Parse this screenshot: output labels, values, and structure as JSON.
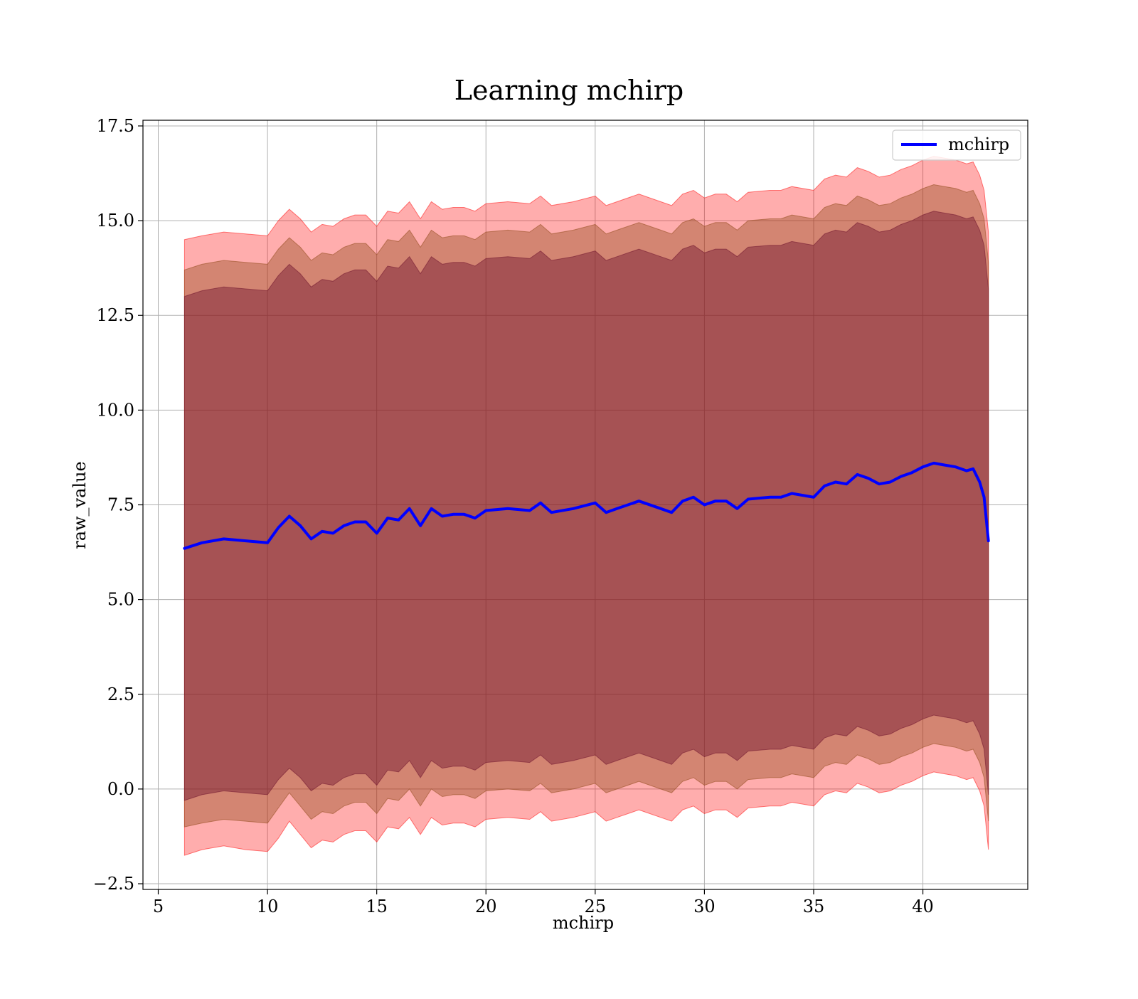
{
  "chart_data": {
    "type": "line",
    "title": "Learning mchirp",
    "xlabel": "mchirp",
    "ylabel": "raw_value",
    "xlim": [
      4.3,
      44.8
    ],
    "ylim": [
      -2.65,
      17.65
    ],
    "xticks": [
      5,
      10,
      15,
      20,
      25,
      30,
      35,
      40
    ],
    "yticks": [
      -2.5,
      0.0,
      2.5,
      5.0,
      7.5,
      10.0,
      12.5,
      15.0,
      17.5
    ],
    "xtick_labels": [
      "5",
      "10",
      "15",
      "20",
      "25",
      "30",
      "35",
      "40"
    ],
    "ytick_labels": [
      "−2.5",
      "0.0",
      "2.5",
      "5.0",
      "7.5",
      "10.0",
      "12.5",
      "15.0",
      "17.5"
    ],
    "grid": true,
    "legend": {
      "location": "upper right",
      "entries": [
        "mchirp"
      ]
    },
    "colors": {
      "line": "#0000ff",
      "band_light": "#ff0000",
      "band_mid": "#8b4513",
      "band_dark": "#6a0d2a",
      "grid": "#b0b0b0"
    },
    "series": [
      {
        "name": "mchirp",
        "x": [
          6.2,
          7,
          8,
          9,
          10,
          10.5,
          11,
          11.5,
          12,
          12.5,
          13,
          13.5,
          14,
          14.5,
          15,
          15.5,
          16,
          16.5,
          17,
          17.5,
          18,
          18.5,
          19,
          19.5,
          20,
          21,
          22,
          22.5,
          23,
          24,
          25,
          25.5,
          26,
          27,
          28,
          28.5,
          29,
          29.5,
          30,
          30.5,
          31,
          31.5,
          32,
          33,
          33.5,
          34,
          35,
          35.5,
          36,
          36.5,
          37,
          37.5,
          38,
          38.5,
          39,
          39.5,
          40,
          40.5,
          41,
          41.5,
          42,
          42.3,
          42.6,
          42.8,
          43
        ],
        "y": [
          6.35,
          6.5,
          6.6,
          6.55,
          6.5,
          6.9,
          7.2,
          6.95,
          6.6,
          6.8,
          6.75,
          6.95,
          7.05,
          7.05,
          6.75,
          7.15,
          7.1,
          7.4,
          6.95,
          7.4,
          7.2,
          7.25,
          7.25,
          7.15,
          7.35,
          7.4,
          7.35,
          7.55,
          7.3,
          7.4,
          7.55,
          7.3,
          7.4,
          7.6,
          7.4,
          7.3,
          7.6,
          7.7,
          7.5,
          7.6,
          7.6,
          7.4,
          7.65,
          7.7,
          7.7,
          7.8,
          7.7,
          8.0,
          8.1,
          8.05,
          8.3,
          8.2,
          8.05,
          8.1,
          8.25,
          8.35,
          8.5,
          8.6,
          8.55,
          8.5,
          8.4,
          8.45,
          8.1,
          7.7,
          6.55
        ]
      }
    ],
    "bands": [
      {
        "name": "outer",
        "x": [
          6.2,
          7,
          8,
          9,
          10,
          10.5,
          11,
          11.5,
          12,
          12.5,
          13,
          13.5,
          14,
          14.5,
          15,
          15.5,
          16,
          16.5,
          17,
          17.5,
          18,
          18.5,
          19,
          19.5,
          20,
          21,
          22,
          22.5,
          23,
          24,
          25,
          25.5,
          26,
          27,
          28,
          28.5,
          29,
          29.5,
          30,
          30.5,
          31,
          31.5,
          32,
          33,
          33.5,
          34,
          35,
          35.5,
          36,
          36.5,
          37,
          37.5,
          38,
          38.5,
          39,
          39.5,
          40,
          40.5,
          41,
          41.5,
          42,
          42.3,
          42.6,
          42.8,
          43
        ],
        "lower": [
          -1.75,
          -1.6,
          -1.5,
          -1.6,
          -1.65,
          -1.3,
          -0.85,
          -1.2,
          -1.55,
          -1.35,
          -1.4,
          -1.2,
          -1.1,
          -1.1,
          -1.4,
          -1.0,
          -1.05,
          -0.75,
          -1.2,
          -0.75,
          -0.95,
          -0.9,
          -0.9,
          -1.0,
          -0.8,
          -0.75,
          -0.8,
          -0.6,
          -0.85,
          -0.75,
          -0.6,
          -0.85,
          -0.75,
          -0.55,
          -0.75,
          -0.85,
          -0.55,
          -0.45,
          -0.65,
          -0.55,
          -0.55,
          -0.75,
          -0.5,
          -0.45,
          -0.45,
          -0.35,
          -0.45,
          -0.15,
          -0.05,
          -0.1,
          0.15,
          0.05,
          -0.1,
          -0.05,
          0.1,
          0.2,
          0.35,
          0.45,
          0.4,
          0.35,
          0.25,
          0.3,
          -0.05,
          -0.45,
          -1.6
        ],
        "upper": [
          14.5,
          14.6,
          14.7,
          14.65,
          14.6,
          15.0,
          15.3,
          15.05,
          14.7,
          14.9,
          14.85,
          15.05,
          15.15,
          15.15,
          14.85,
          15.25,
          15.2,
          15.5,
          15.05,
          15.5,
          15.3,
          15.35,
          15.35,
          15.25,
          15.45,
          15.5,
          15.45,
          15.65,
          15.4,
          15.5,
          15.65,
          15.4,
          15.5,
          15.7,
          15.5,
          15.4,
          15.7,
          15.8,
          15.6,
          15.7,
          15.7,
          15.5,
          15.75,
          15.8,
          15.8,
          15.9,
          15.8,
          16.1,
          16.2,
          16.15,
          16.4,
          16.3,
          16.15,
          16.2,
          16.35,
          16.45,
          16.6,
          16.7,
          16.65,
          16.6,
          16.5,
          16.55,
          16.2,
          15.8,
          14.7
        ]
      },
      {
        "name": "middle",
        "x": [
          6.2,
          7,
          8,
          9,
          10,
          10.5,
          11,
          11.5,
          12,
          12.5,
          13,
          13.5,
          14,
          14.5,
          15,
          15.5,
          16,
          16.5,
          17,
          17.5,
          18,
          18.5,
          19,
          19.5,
          20,
          21,
          22,
          22.5,
          23,
          24,
          25,
          25.5,
          26,
          27,
          28,
          28.5,
          29,
          29.5,
          30,
          30.5,
          31,
          31.5,
          32,
          33,
          33.5,
          34,
          35,
          35.5,
          36,
          36.5,
          37,
          37.5,
          38,
          38.5,
          39,
          39.5,
          40,
          40.5,
          41,
          41.5,
          42,
          42.3,
          42.6,
          42.8,
          43
        ],
        "lower": [
          -1.0,
          -0.9,
          -0.8,
          -0.85,
          -0.9,
          -0.5,
          -0.1,
          -0.45,
          -0.8,
          -0.6,
          -0.65,
          -0.45,
          -0.35,
          -0.35,
          -0.65,
          -0.25,
          -0.3,
          0.0,
          -0.45,
          0.0,
          -0.2,
          -0.15,
          -0.15,
          -0.25,
          -0.05,
          0.0,
          -0.05,
          0.15,
          -0.1,
          0.0,
          0.15,
          -0.1,
          0.0,
          0.2,
          0.0,
          -0.1,
          0.2,
          0.3,
          0.1,
          0.2,
          0.2,
          0.0,
          0.25,
          0.3,
          0.3,
          0.4,
          0.3,
          0.6,
          0.7,
          0.65,
          0.9,
          0.8,
          0.65,
          0.7,
          0.85,
          0.95,
          1.1,
          1.2,
          1.15,
          1.1,
          1.0,
          1.05,
          0.7,
          0.3,
          -0.85
        ],
        "upper": [
          13.7,
          13.85,
          13.95,
          13.9,
          13.85,
          14.25,
          14.55,
          14.3,
          13.95,
          14.15,
          14.1,
          14.3,
          14.4,
          14.4,
          14.1,
          14.5,
          14.45,
          14.75,
          14.3,
          14.75,
          14.55,
          14.6,
          14.6,
          14.5,
          14.7,
          14.75,
          14.7,
          14.9,
          14.65,
          14.75,
          14.9,
          14.65,
          14.75,
          14.95,
          14.75,
          14.65,
          14.95,
          15.05,
          14.85,
          14.95,
          14.95,
          14.75,
          15.0,
          15.05,
          15.05,
          15.15,
          15.05,
          15.35,
          15.45,
          15.4,
          15.65,
          15.55,
          15.4,
          15.45,
          15.6,
          15.7,
          15.85,
          15.95,
          15.9,
          15.85,
          15.75,
          15.8,
          15.45,
          15.05,
          13.9
        ]
      },
      {
        "name": "inner",
        "x": [
          6.2,
          7,
          8,
          9,
          10,
          10.5,
          11,
          11.5,
          12,
          12.5,
          13,
          13.5,
          14,
          14.5,
          15,
          15.5,
          16,
          16.5,
          17,
          17.5,
          18,
          18.5,
          19,
          19.5,
          20,
          21,
          22,
          22.5,
          23,
          24,
          25,
          25.5,
          26,
          27,
          28,
          28.5,
          29,
          29.5,
          30,
          30.5,
          31,
          31.5,
          32,
          33,
          33.5,
          34,
          35,
          35.5,
          36,
          36.5,
          37,
          37.5,
          38,
          38.5,
          39,
          39.5,
          40,
          40.5,
          41,
          41.5,
          42,
          42.3,
          42.6,
          42.8,
          43
        ],
        "lower": [
          -0.3,
          -0.15,
          -0.05,
          -0.1,
          -0.15,
          0.25,
          0.55,
          0.3,
          -0.05,
          0.15,
          0.1,
          0.3,
          0.4,
          0.4,
          0.1,
          0.5,
          0.45,
          0.75,
          0.3,
          0.75,
          0.55,
          0.6,
          0.6,
          0.5,
          0.7,
          0.75,
          0.7,
          0.9,
          0.65,
          0.75,
          0.9,
          0.65,
          0.75,
          0.95,
          0.75,
          0.65,
          0.95,
          1.05,
          0.85,
          0.95,
          0.95,
          0.75,
          1.0,
          1.05,
          1.05,
          1.15,
          1.05,
          1.35,
          1.45,
          1.4,
          1.65,
          1.55,
          1.4,
          1.45,
          1.6,
          1.7,
          1.85,
          1.95,
          1.9,
          1.85,
          1.75,
          1.8,
          1.45,
          1.05,
          -0.15
        ],
        "upper": [
          13.0,
          13.15,
          13.25,
          13.2,
          13.15,
          13.55,
          13.85,
          13.6,
          13.25,
          13.45,
          13.4,
          13.6,
          13.7,
          13.7,
          13.4,
          13.8,
          13.75,
          14.05,
          13.6,
          14.05,
          13.85,
          13.9,
          13.9,
          13.8,
          14.0,
          14.05,
          14.0,
          14.2,
          13.95,
          14.05,
          14.2,
          13.95,
          14.05,
          14.25,
          14.05,
          13.95,
          14.25,
          14.35,
          14.15,
          14.25,
          14.25,
          14.05,
          14.3,
          14.35,
          14.35,
          14.45,
          14.35,
          14.65,
          14.75,
          14.7,
          14.95,
          14.85,
          14.7,
          14.75,
          14.9,
          15.0,
          15.15,
          15.25,
          15.2,
          15.15,
          15.05,
          15.1,
          14.75,
          14.35,
          13.2
        ]
      }
    ]
  }
}
